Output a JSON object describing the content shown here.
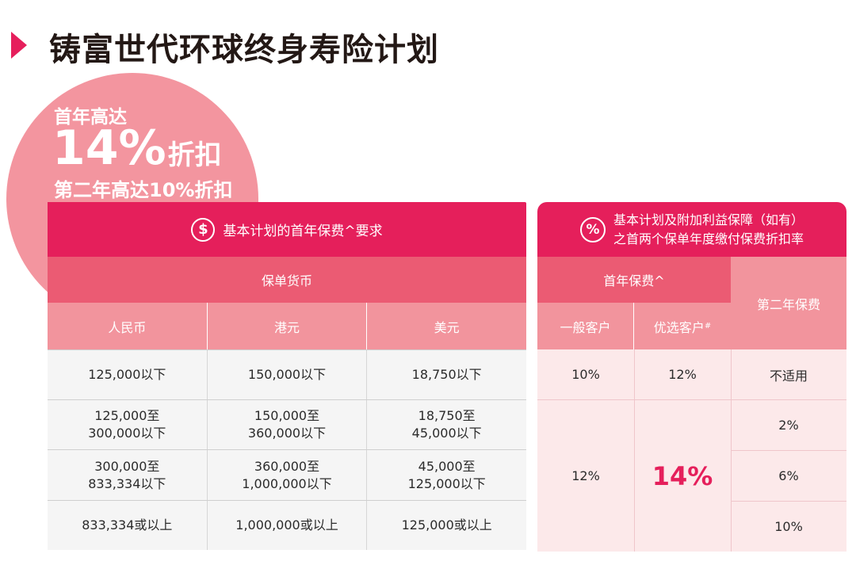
{
  "title": "铸富世代环球终身寿险计划",
  "promo": {
    "line1": "首年高达",
    "big_number": "14%",
    "big_suffix": "折扣",
    "line3": "第二年高达10%折扣"
  },
  "left_table": {
    "header": "基本计划的首年保费^要求",
    "header_icon": "dollar-icon",
    "subheader": "保单货币",
    "columns": [
      "人民币",
      "港元",
      "美元"
    ],
    "rows": [
      [
        "125,000以下",
        "150,000以下",
        "18,750以下"
      ],
      [
        "125,000至\n300,000以下",
        "150,000至\n360,000以下",
        "18,750至\n45,000以下"
      ],
      [
        "300,000至\n833,334以下",
        "360,000至\n1,000,000以下",
        "45,000至\n125,000以下"
      ],
      [
        "833,334或以上",
        "1,000,000或以上",
        "125,000或以上"
      ]
    ]
  },
  "right_table": {
    "header": "基本计划及附加利益保障（如有）\n之首两个保单年度缴付保费折扣率",
    "header_icon": "percent-icon",
    "first_year_label": "首年保费^",
    "second_year_label": "第二年保费",
    "general_label": "一般客户",
    "preferred_label": "优选客户",
    "preferred_mark": "#",
    "row1": {
      "general": "10%",
      "preferred": "12%",
      "second": "不适用"
    },
    "merged": {
      "general": "12%",
      "preferred": "14%"
    },
    "second_year_values": [
      "2%",
      "6%",
      "10%"
    ]
  },
  "colors": {
    "accent": "#e51f5b",
    "mid_pink": "#eb5b73",
    "light_pink": "#f2949d",
    "circle": "#f3959f"
  }
}
